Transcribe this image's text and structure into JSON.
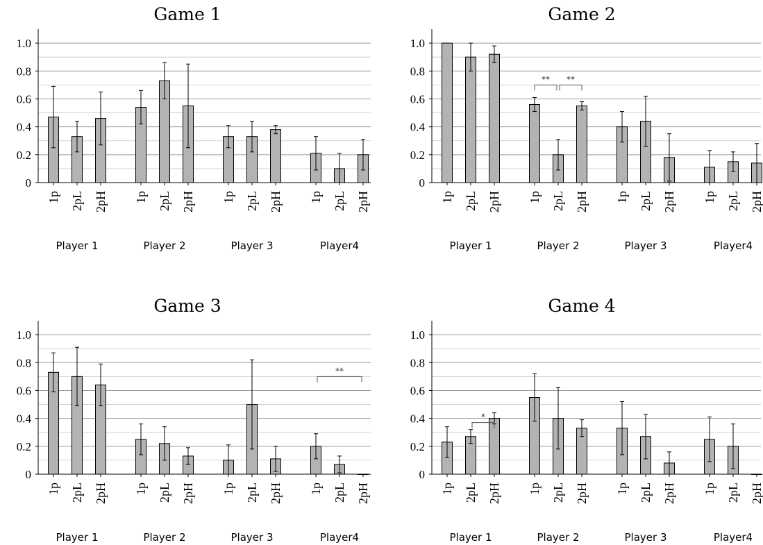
{
  "chart_data": [
    {
      "type": "bar",
      "title": "Game 1",
      "ylim": [
        0,
        1.1
      ],
      "yticks": [
        "0",
        "0.2",
        "0.4",
        "0.6",
        "0.8",
        "1.0"
      ],
      "grid": true,
      "groups": [
        {
          "label": "Player 1",
          "bars": [
            {
              "category": "1p",
              "value": 0.47,
              "err_low": 0.25,
              "err_high": 0.69
            },
            {
              "category": "2pL",
              "value": 0.33,
              "err_low": 0.22,
              "err_high": 0.44
            },
            {
              "category": "2pH",
              "value": 0.46,
              "err_low": 0.27,
              "err_high": 0.65
            }
          ]
        },
        {
          "label": "Player 2",
          "bars": [
            {
              "category": "1p",
              "value": 0.54,
              "err_low": 0.42,
              "err_high": 0.66
            },
            {
              "category": "2pL",
              "value": 0.73,
              "err_low": 0.6,
              "err_high": 0.86
            },
            {
              "category": "2pH",
              "value": 0.55,
              "err_low": 0.25,
              "err_high": 0.85
            }
          ]
        },
        {
          "label": "Player 3",
          "bars": [
            {
              "category": "1p",
              "value": 0.33,
              "err_low": 0.25,
              "err_high": 0.41
            },
            {
              "category": "2pL",
              "value": 0.33,
              "err_low": 0.22,
              "err_high": 0.44
            },
            {
              "category": "2pH",
              "value": 0.38,
              "err_low": 0.35,
              "err_high": 0.41
            }
          ]
        },
        {
          "label": "Player4",
          "bars": [
            {
              "category": "1p",
              "value": 0.21,
              "err_low": 0.09,
              "err_high": 0.33
            },
            {
              "category": "2pL",
              "value": 0.1,
              "err_low": 0.0,
              "err_high": 0.21
            },
            {
              "category": "2pH",
              "value": 0.2,
              "err_low": 0.09,
              "err_high": 0.31
            }
          ]
        }
      ],
      "significance": []
    },
    {
      "type": "bar",
      "title": "Game 2",
      "ylim": [
        0,
        1.1
      ],
      "yticks": [
        "0",
        "0.2",
        "0.4",
        "0.6",
        "0.8",
        "1.0"
      ],
      "grid": true,
      "groups": [
        {
          "label": "Player 1",
          "bars": [
            {
              "category": "1p",
              "value": 1.0,
              "err_low": 1.0,
              "err_high": 1.0
            },
            {
              "category": "2pL",
              "value": 0.9,
              "err_low": 0.8,
              "err_high": 1.0
            },
            {
              "category": "2pH",
              "value": 0.92,
              "err_low": 0.86,
              "err_high": 0.98
            }
          ]
        },
        {
          "label": "Player 2",
          "bars": [
            {
              "category": "1p",
              "value": 0.56,
              "err_low": 0.51,
              "err_high": 0.61
            },
            {
              "category": "2pL",
              "value": 0.2,
              "err_low": 0.09,
              "err_high": 0.31
            },
            {
              "category": "2pH",
              "value": 0.55,
              "err_low": 0.52,
              "err_high": 0.58
            }
          ]
        },
        {
          "label": "Player 3",
          "bars": [
            {
              "category": "1p",
              "value": 0.4,
              "err_low": 0.29,
              "err_high": 0.51
            },
            {
              "category": "2pL",
              "value": 0.44,
              "err_low": 0.26,
              "err_high": 0.62
            },
            {
              "category": "2pH",
              "value": 0.18,
              "err_low": 0.01,
              "err_high": 0.35
            }
          ]
        },
        {
          "label": "Player4",
          "bars": [
            {
              "category": "1p",
              "value": 0.11,
              "err_low": 0.0,
              "err_high": 0.23
            },
            {
              "category": "2pL",
              "value": 0.15,
              "err_low": 0.08,
              "err_high": 0.22
            },
            {
              "category": "2pH",
              "value": 0.14,
              "err_low": 0.0,
              "err_high": 0.28
            }
          ]
        }
      ],
      "significance": [
        {
          "group": 1,
          "from": 0,
          "to": 1,
          "label": "**",
          "y": 0.7
        },
        {
          "group": 1,
          "from": 1,
          "to": 2,
          "label": "**",
          "y": 0.7
        }
      ]
    },
    {
      "type": "bar",
      "title": "Game 3",
      "ylim": [
        0,
        1.1
      ],
      "yticks": [
        "0",
        "0.2",
        "0.4",
        "0.6",
        "0.8",
        "1.0"
      ],
      "grid": true,
      "groups": [
        {
          "label": "Player 1",
          "bars": [
            {
              "category": "1p",
              "value": 0.73,
              "err_low": 0.59,
              "err_high": 0.87
            },
            {
              "category": "2pL",
              "value": 0.7,
              "err_low": 0.49,
              "err_high": 0.91
            },
            {
              "category": "2pH",
              "value": 0.64,
              "err_low": 0.49,
              "err_high": 0.79
            }
          ]
        },
        {
          "label": "Player 2",
          "bars": [
            {
              "category": "1p",
              "value": 0.25,
              "err_low": 0.14,
              "err_high": 0.36
            },
            {
              "category": "2pL",
              "value": 0.22,
              "err_low": 0.1,
              "err_high": 0.34
            },
            {
              "category": "2pH",
              "value": 0.13,
              "err_low": 0.07,
              "err_high": 0.19
            }
          ]
        },
        {
          "label": "Player 3",
          "bars": [
            {
              "category": "1p",
              "value": 0.1,
              "err_low": 0.0,
              "err_high": 0.21
            },
            {
              "category": "2pL",
              "value": 0.5,
              "err_low": 0.18,
              "err_high": 0.82
            },
            {
              "category": "2pH",
              "value": 0.11,
              "err_low": 0.02,
              "err_high": 0.2
            }
          ]
        },
        {
          "label": "Player4",
          "bars": [
            {
              "category": "1p",
              "value": 0.2,
              "err_low": 0.11,
              "err_high": 0.29
            },
            {
              "category": "2pL",
              "value": 0.07,
              "err_low": 0.01,
              "err_high": 0.13
            },
            {
              "category": "2pH",
              "value": 0.0,
              "err_low": 0.0,
              "err_high": 0.0
            }
          ]
        }
      ],
      "significance": [
        {
          "group": 3,
          "from": 0,
          "to": 2,
          "label": "**",
          "y": 0.7
        }
      ]
    },
    {
      "type": "bar",
      "title": "Game 4",
      "ylim": [
        0,
        1.1
      ],
      "yticks": [
        "0",
        "0.2",
        "0.4",
        "0.6",
        "0.8",
        "1.0"
      ],
      "grid": true,
      "groups": [
        {
          "label": "Player 1",
          "bars": [
            {
              "category": "1p",
              "value": 0.23,
              "err_low": 0.12,
              "err_high": 0.34
            },
            {
              "category": "2pL",
              "value": 0.27,
              "err_low": 0.22,
              "err_high": 0.32
            },
            {
              "category": "2pH",
              "value": 0.4,
              "err_low": 0.36,
              "err_high": 0.44
            }
          ]
        },
        {
          "label": "Player 2",
          "bars": [
            {
              "category": "1p",
              "value": 0.55,
              "err_low": 0.38,
              "err_high": 0.72
            },
            {
              "category": "2pL",
              "value": 0.4,
              "err_low": 0.18,
              "err_high": 0.62
            },
            {
              "category": "2pH",
              "value": 0.33,
              "err_low": 0.27,
              "err_high": 0.39
            }
          ]
        },
        {
          "label": "Player 3",
          "bars": [
            {
              "category": "1p",
              "value": 0.33,
              "err_low": 0.14,
              "err_high": 0.52
            },
            {
              "category": "2pL",
              "value": 0.27,
              "err_low": 0.11,
              "err_high": 0.43
            },
            {
              "category": "2pH",
              "value": 0.08,
              "err_low": 0.0,
              "err_high": 0.16
            }
          ]
        },
        {
          "label": "Player4",
          "bars": [
            {
              "category": "1p",
              "value": 0.25,
              "err_low": 0.09,
              "err_high": 0.41
            },
            {
              "category": "2pL",
              "value": 0.2,
              "err_low": 0.04,
              "err_high": 0.36
            },
            {
              "category": "2pH",
              "value": 0.0,
              "err_low": 0.0,
              "err_high": 0.0
            }
          ]
        }
      ],
      "significance": [
        {
          "group": 0,
          "from": 1,
          "to": 2,
          "label": "*",
          "y": 0.37
        }
      ]
    }
  ],
  "colors": {
    "bar_fill": "#b3b3b3",
    "bar_stroke": "#000000",
    "grid": "#9a9a9a",
    "axis": "#000000",
    "bracket": "#555555"
  }
}
